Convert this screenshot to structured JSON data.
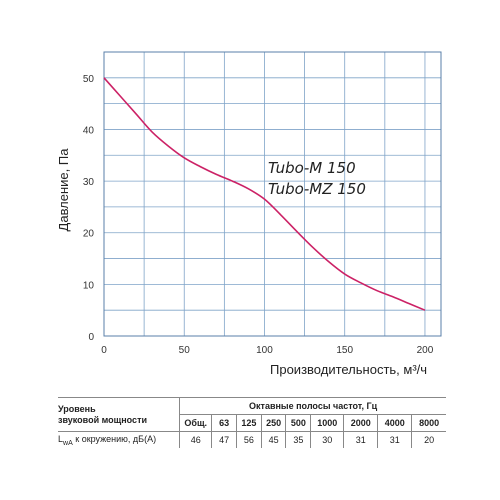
{
  "chart_data": {
    "type": "line",
    "xlabel": "Производительность, м³/ч",
    "ylabel": "Давление, Па",
    "xlim": [
      0,
      210
    ],
    "ylim": [
      0,
      55
    ],
    "x_ticks": [
      0,
      50,
      100,
      150,
      200
    ],
    "y_ticks": [
      0,
      10,
      20,
      30,
      40,
      50
    ],
    "grid": true,
    "grid_x_step": 25,
    "grid_y_step": 5,
    "line_color": "#cc2266",
    "grid_color": "#7fa3c8",
    "series": [
      {
        "name": "",
        "x": [
          0,
          10,
          20,
          30,
          40,
          50,
          60,
          70,
          80,
          90,
          100,
          110,
          120,
          130,
          140,
          150,
          160,
          170,
          180,
          190,
          200
        ],
        "y": [
          50,
          46.5,
          43,
          39.5,
          36.8,
          34.5,
          32.8,
          31.3,
          30,
          28.5,
          26.5,
          23.5,
          20.3,
          17.2,
          14.4,
          12,
          10.3,
          8.8,
          7.6,
          6.3,
          5
        ]
      }
    ],
    "annotations": [
      "Tubo-M 150",
      "Tubo-MZ 150"
    ]
  },
  "table": {
    "label_line1": "Уровень",
    "label_line2": "звуковой мощности",
    "bands_header": "Октавные полосы частот, Гц",
    "columns": [
      "Общ.",
      "63",
      "125",
      "250",
      "500",
      "1000",
      "2000",
      "4000",
      "8000"
    ],
    "row_label_main": "L",
    "row_label_sub": "wA",
    "row_label_rest": " к окружению, дБ(А)",
    "values": [
      "46",
      "47",
      "56",
      "45",
      "35",
      "30",
      "31",
      "31",
      "20"
    ]
  }
}
